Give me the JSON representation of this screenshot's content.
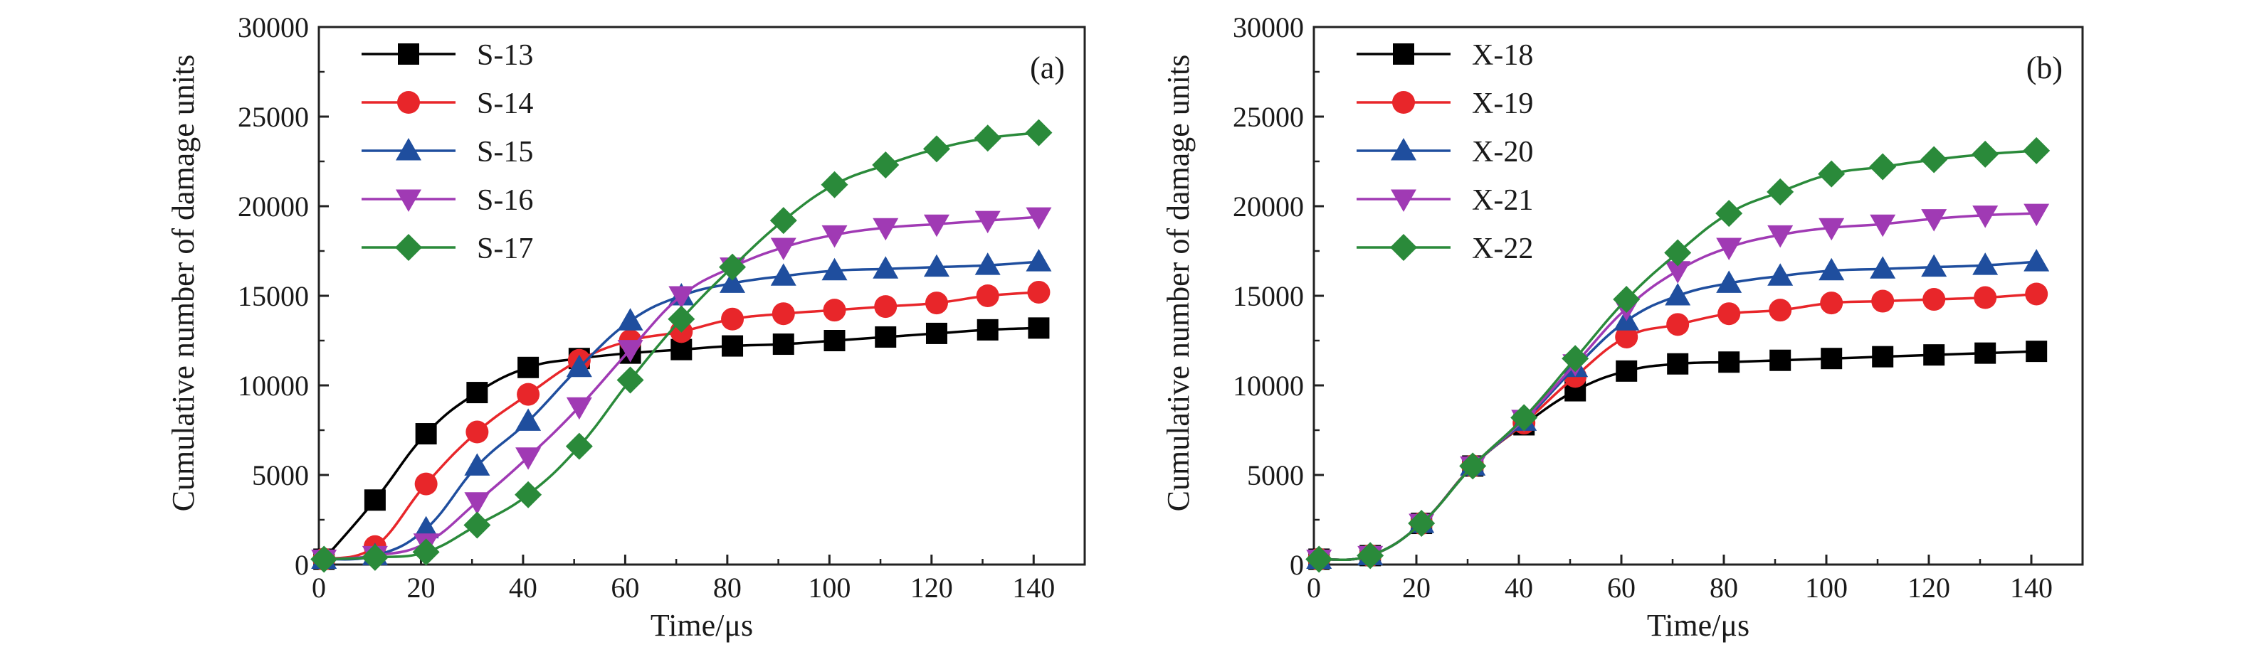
{
  "chart_data": [
    {
      "type": "line",
      "panel_label": "(a)",
      "xlabel": "Time/μs",
      "ylabel": "Cumulative number of damage units",
      "xlim": [
        0,
        150
      ],
      "ylim": [
        0,
        30000
      ],
      "xticks": [
        0,
        20,
        40,
        60,
        80,
        100,
        120,
        140
      ],
      "yticks": [
        0,
        5000,
        10000,
        15000,
        20000,
        25000,
        30000
      ],
      "legend_position": "top-left",
      "x": [
        1,
        11,
        21,
        31,
        41,
        51,
        61,
        71,
        81,
        91,
        101,
        111,
        121,
        131,
        141
      ],
      "series": [
        {
          "name": "S-13",
          "marker": "square",
          "color": "#000000",
          "values": [
            300,
            3600,
            7300,
            9600,
            11000,
            11500,
            11800,
            12000,
            12200,
            12300,
            12500,
            12700,
            12900,
            13100,
            13200
          ]
        },
        {
          "name": "S-14",
          "marker": "circle",
          "color": "#e8262a",
          "values": [
            300,
            1000,
            4500,
            7400,
            9500,
            11400,
            12500,
            13000,
            13700,
            14000,
            14200,
            14400,
            14600,
            15000,
            15200
          ]
        },
        {
          "name": "S-15",
          "marker": "triangle-up",
          "color": "#1f4e9e",
          "values": [
            300,
            500,
            2000,
            5500,
            8000,
            11000,
            13600,
            15000,
            15700,
            16100,
            16400,
            16500,
            16600,
            16700,
            16900
          ]
        },
        {
          "name": "S-16",
          "marker": "triangle-down",
          "color": "#a03ab4",
          "values": [
            300,
            500,
            1200,
            3500,
            6000,
            8800,
            12000,
            15000,
            16600,
            17700,
            18400,
            18800,
            19000,
            19200,
            19400
          ]
        },
        {
          "name": "S-17",
          "marker": "diamond",
          "color": "#2a8a3a",
          "values": [
            300,
            400,
            700,
            2200,
            3900,
            6600,
            10300,
            13700,
            16600,
            19200,
            21200,
            22300,
            23200,
            23800,
            24100
          ]
        }
      ]
    },
    {
      "type": "line",
      "panel_label": "(b)",
      "xlabel": "Time/μs",
      "ylabel": "Cumulative number of damage units",
      "xlim": [
        0,
        150
      ],
      "ylim": [
        0,
        30000
      ],
      "xticks": [
        0,
        20,
        40,
        60,
        80,
        100,
        120,
        140
      ],
      "yticks": [
        0,
        5000,
        10000,
        15000,
        20000,
        25000,
        30000
      ],
      "legend_position": "top-left",
      "x": [
        1,
        11,
        21,
        31,
        41,
        51,
        61,
        71,
        81,
        91,
        101,
        111,
        121,
        131,
        141
      ],
      "series": [
        {
          "name": "X-18",
          "marker": "square",
          "color": "#000000",
          "values": [
            300,
            500,
            2300,
            5500,
            7800,
            9700,
            10800,
            11200,
            11300,
            11400,
            11500,
            11600,
            11700,
            11800,
            11900
          ]
        },
        {
          "name": "X-19",
          "marker": "circle",
          "color": "#e8262a",
          "values": [
            300,
            500,
            2300,
            5500,
            7900,
            10500,
            12700,
            13400,
            14000,
            14200,
            14600,
            14700,
            14800,
            14900,
            15100
          ]
        },
        {
          "name": "X-20",
          "marker": "triangle-up",
          "color": "#1f4e9e",
          "values": [
            300,
            500,
            2300,
            5500,
            8000,
            11000,
            13600,
            15000,
            15700,
            16100,
            16400,
            16500,
            16600,
            16700,
            16900
          ]
        },
        {
          "name": "X-21",
          "marker": "triangle-down",
          "color": "#a03ab4",
          "values": [
            300,
            500,
            2300,
            5500,
            8100,
            11200,
            14300,
            16400,
            17700,
            18400,
            18800,
            19000,
            19300,
            19500,
            19600
          ]
        },
        {
          "name": "X-22",
          "marker": "diamond",
          "color": "#2a8a3a",
          "values": [
            300,
            500,
            2300,
            5500,
            8200,
            11500,
            14800,
            17400,
            19600,
            20800,
            21800,
            22200,
            22600,
            22900,
            23100
          ]
        }
      ]
    }
  ]
}
